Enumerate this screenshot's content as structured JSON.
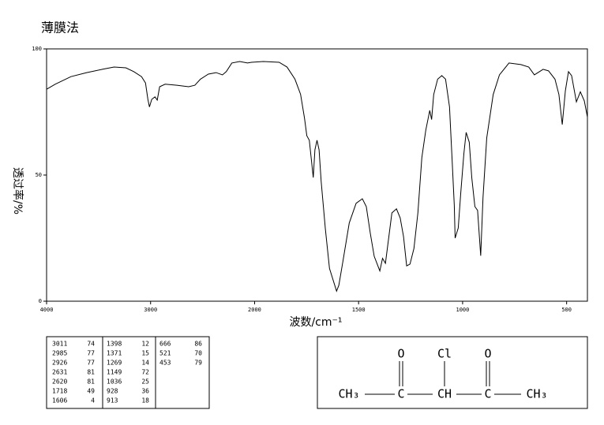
{
  "chart_data": {
    "type": "line",
    "title": "薄膜法",
    "y_label": "透过率/%",
    "x_label": "波数/cm⁻¹",
    "xlim": [
      4000,
      400
    ],
    "x_scale_break": 2000,
    "x_scale_break_factor": 2,
    "xticks": [
      4000,
      3000,
      2000,
      1500,
      1000,
      500
    ],
    "ylim": [
      0,
      100
    ],
    "yticks": [
      0,
      50,
      100
    ],
    "color": "#000000",
    "series": [
      {
        "name": "spectrum",
        "color": "#000000",
        "x": [
          4000,
          3917,
          3766,
          3615,
          3464,
          3351,
          3238,
          3162,
          3087,
          3049,
          3026,
          3011,
          2989,
          2958,
          2936,
          2913,
          2860,
          2747,
          2634,
          2574,
          2521,
          2445,
          2370,
          2309,
          2272,
          2219,
          2143,
          2068,
          2030,
          1958,
          1882,
          1844,
          1806,
          1779,
          1760,
          1749,
          1737,
          1718,
          1710,
          1700,
          1690,
          1680,
          1660,
          1640,
          1606,
          1595,
          1575,
          1545,
          1512,
          1482,
          1463,
          1444,
          1425,
          1398,
          1385,
          1371,
          1340,
          1318,
          1300,
          1284,
          1269,
          1253,
          1234,
          1215,
          1196,
          1177,
          1158,
          1149,
          1139,
          1120,
          1100,
          1082,
          1063,
          1051,
          1040,
          1036,
          1021,
          1009,
          994,
          983,
          968,
          956,
          941,
          928,
          913,
          902,
          884,
          853,
          823,
          777,
          720,
          682,
          655,
          613,
          587,
          556,
          537,
          521,
          506,
          491,
          476,
          453,
          434,
          415,
          400
        ],
        "values": [
          84,
          86,
          89,
          90.6,
          91.9,
          92.8,
          92.5,
          91,
          89,
          86.5,
          80,
          77,
          80,
          81,
          79.7,
          85,
          86,
          85.6,
          85,
          85.6,
          88,
          90,
          90.6,
          89.7,
          91,
          94.4,
          95,
          94.4,
          94.7,
          95,
          94.7,
          92.8,
          88,
          82,
          72.5,
          65.6,
          63.8,
          49,
          60,
          63.8,
          60,
          47.5,
          28.8,
          13,
          4,
          6.3,
          16,
          31,
          38.8,
          40.6,
          37.5,
          27,
          17.8,
          12,
          17,
          15,
          35,
          36.6,
          33,
          25.6,
          14,
          14.7,
          20.9,
          35,
          56.9,
          67.8,
          75.6,
          72,
          81.9,
          88,
          89.4,
          88,
          77,
          56.9,
          38,
          25,
          29,
          42.8,
          58.4,
          66.9,
          63,
          49,
          37.5,
          36,
          18,
          41,
          64.7,
          81.9,
          89.7,
          94.4,
          93.8,
          92.8,
          89.7,
          91.9,
          91.3,
          88,
          81.9,
          70,
          83.4,
          91,
          89.4,
          79,
          83,
          79.4,
          73
        ]
      }
    ]
  },
  "peak_table": {
    "columns": [
      [
        [
          3011,
          74
        ],
        [
          2985,
          77
        ],
        [
          2926,
          77
        ],
        [
          2631,
          81
        ],
        [
          2620,
          81
        ],
        [
          1718,
          49
        ],
        [
          1606,
          4
        ]
      ],
      [
        [
          1398,
          12
        ],
        [
          1371,
          15
        ],
        [
          1269,
          14
        ],
        [
          1149,
          72
        ],
        [
          1036,
          25
        ],
        [
          928,
          36
        ],
        [
          913,
          18
        ]
      ],
      [
        [
          666,
          86
        ],
        [
          521,
          70
        ],
        [
          453,
          79
        ]
      ]
    ]
  },
  "structure": {
    "top": [
      "O",
      "Cl",
      "O"
    ],
    "chain": [
      "CH₃",
      "C",
      "CH",
      "C",
      "CH₃"
    ]
  }
}
